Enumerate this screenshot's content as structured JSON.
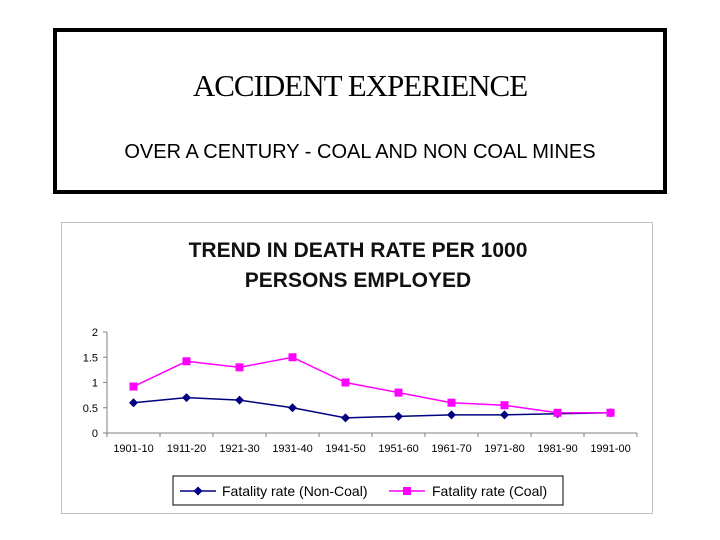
{
  "header": {
    "title": "ACCIDENT EXPERIENCE",
    "subtitle": "OVER A CENTURY - COAL AND NON COAL MINES"
  },
  "chart_data": {
    "type": "line",
    "title_lines": [
      "TREND IN DEATH RATE PER 1000",
      "PERSONS EMPLOYED"
    ],
    "categories": [
      "1901-10",
      "1911-20",
      "1921-30",
      "1931-40",
      "1941-50",
      "1951-60",
      "1961-70",
      "1971-80",
      "1981-90",
      "1991-00"
    ],
    "y_ticks": [
      "0",
      "0.5",
      "1",
      "1.5",
      "2"
    ],
    "ylim": [
      0,
      2
    ],
    "xlabel": "",
    "ylabel": "",
    "legend_position": "bottom",
    "series": [
      {
        "name": "Fatality rate (Non-Coal)",
        "color": "#000080",
        "marker": "diamond",
        "values": [
          0.6,
          0.7,
          0.65,
          0.5,
          0.3,
          0.33,
          0.36,
          0.36,
          0.38,
          0.4
        ]
      },
      {
        "name": "Fatality rate (Coal)",
        "color": "#ff00ff",
        "marker": "square",
        "values": [
          0.92,
          1.42,
          1.3,
          1.5,
          1.0,
          0.8,
          0.6,
          0.55,
          0.4,
          0.4
        ]
      }
    ]
  }
}
